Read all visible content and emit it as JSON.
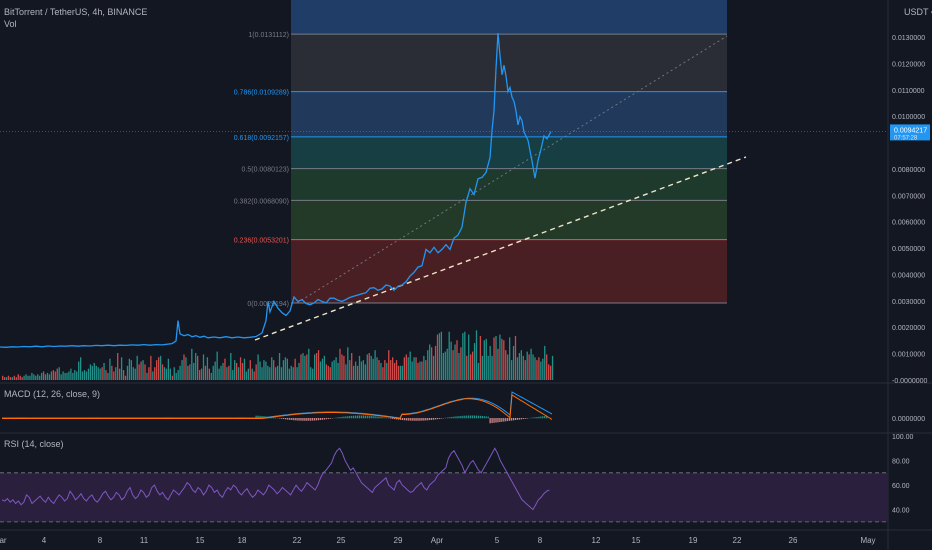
{
  "header": {
    "symbol": "BitTorrent / TetherUS, 4h, BINANCE",
    "vol_label": "Vol",
    "currency": "USDT",
    "currency_icon": "chevron-down-icon"
  },
  "colors": {
    "background": "#131722",
    "price_line": "#2196f3",
    "bull": "#26a69a",
    "bear": "#ef5350",
    "macd": "#2196f3",
    "signal": "#ff6d00",
    "rsi": "#7e57c2",
    "rsi_band": "#2a1f3d",
    "fib_line": "#787b86",
    "trend_dashed": "#f0e6c8"
  },
  "chart_data": [
    {
      "type": "line",
      "name": "price",
      "title": "BitTorrent / TetherUS, 4h, BINANCE",
      "x_ticks": [
        "ar",
        "4",
        "8",
        "11",
        "15",
        "18",
        "22",
        "25",
        "29",
        "Apr",
        "5",
        "8",
        "12",
        "15",
        "19",
        "22",
        "26",
        "May"
      ],
      "y_ticks": [
        "0.0130000",
        "0.0120000",
        "0.0110000",
        "0.0100000",
        "0.0080000",
        "0.0070000",
        "0.0060000",
        "0.0050000",
        "0.0040000",
        "0.0030000",
        "0.0020000",
        "0.0010000",
        "-0.0000000"
      ],
      "ylim": [
        -0.0001,
        0.0145
      ],
      "current_price_label": "0.0094217",
      "current_price_sub": "07:57:28",
      "series": [
        {
          "values": [
            [
              0,
              0.00125
            ],
            [
              6,
              0.00124
            ],
            [
              12,
              0.00126
            ],
            [
              18,
              0.00125
            ],
            [
              24,
              0.00127
            ],
            [
              30,
              0.00126
            ],
            [
              36,
              0.00128
            ],
            [
              42,
              0.00126
            ],
            [
              48,
              0.00129
            ],
            [
              54,
              0.00127
            ],
            [
              60,
              0.00129
            ],
            [
              66,
              0.00128
            ],
            [
              72,
              0.0013
            ],
            [
              78,
              0.00128
            ],
            [
              84,
              0.0013
            ],
            [
              90,
              0.00129
            ],
            [
              96,
              0.00131
            ],
            [
              102,
              0.0013
            ],
            [
              108,
              0.00132
            ],
            [
              114,
              0.0013
            ],
            [
              120,
              0.00132
            ],
            [
              126,
              0.00131
            ],
            [
              132,
              0.00133
            ],
            [
              138,
              0.00132
            ],
            [
              144,
              0.00134
            ],
            [
              150,
              0.00132
            ],
            [
              156,
              0.00134
            ],
            [
              162,
              0.00133
            ],
            [
              168,
              0.00136
            ],
            [
              172,
              0.00138
            ],
            [
              176,
              0.00148
            ],
            [
              178,
              0.00225
            ],
            [
              180,
              0.00175
            ],
            [
              184,
              0.00168
            ],
            [
              188,
              0.00172
            ],
            [
              192,
              0.00164
            ],
            [
              196,
              0.00168
            ],
            [
              200,
              0.00162
            ],
            [
              204,
              0.00166
            ],
            [
              208,
              0.0016
            ],
            [
              214,
              0.00163
            ],
            [
              220,
              0.0016
            ],
            [
              226,
              0.00164
            ],
            [
              232,
              0.0016
            ],
            [
              238,
              0.00163
            ],
            [
              244,
              0.0016
            ],
            [
              250,
              0.00162
            ],
            [
              256,
              0.00165
            ],
            [
              262,
              0.00178
            ],
            [
              266,
              0.00225
            ],
            [
              268,
              0.00298
            ],
            [
              270,
              0.00258
            ],
            [
              274,
              0.00298
            ],
            [
              278,
              0.00272
            ],
            [
              282,
              0.00255
            ],
            [
              286,
              0.00245
            ],
            [
              290,
              0.00262
            ],
            [
              294,
              0.00315
            ],
            [
              298,
              0.00298
            ],
            [
              302,
              0.00305
            ],
            [
              306,
              0.0029
            ],
            [
              310,
              0.00285
            ],
            [
              314,
              0.00292
            ],
            [
              318,
              0.00305
            ],
            [
              322,
              0.00298
            ],
            [
              326,
              0.00292
            ],
            [
              330,
              0.0031
            ],
            [
              334,
              0.0031
            ],
            [
              338,
              0.00302
            ],
            [
              342,
              0.00298
            ],
            [
              346,
              0.00305
            ],
            [
              350,
              0.00313
            ],
            [
              354,
              0.00318
            ],
            [
              358,
              0.00322
            ],
            [
              362,
              0.00327
            ],
            [
              366,
              0.00331
            ],
            [
              370,
              0.00348
            ],
            [
              374,
              0.0035
            ],
            [
              378,
              0.0034
            ],
            [
              382,
              0.00345
            ],
            [
              386,
              0.0036
            ],
            [
              390,
              0.00356
            ],
            [
              394,
              0.0034
            ],
            [
              398,
              0.00355
            ],
            [
              402,
              0.0036
            ],
            [
              406,
              0.00372
            ],
            [
              410,
              0.00394
            ],
            [
              414,
              0.00408
            ],
            [
              418,
              0.00428
            ],
            [
              422,
              0.00433
            ],
            [
              426,
              0.00495
            ],
            [
              430,
              0.00482
            ],
            [
              434,
              0.00503
            ],
            [
              438,
              0.00482
            ],
            [
              442,
              0.00495
            ],
            [
              446,
              0.00513
            ],
            [
              450,
              0.00495
            ],
            [
              454,
              0.00538
            ],
            [
              458,
              0.00549
            ],
            [
              462,
              0.00579
            ],
            [
              466,
              0.00673
            ],
            [
              470,
              0.00725
            ],
            [
              474,
              0.00703
            ],
            [
              478,
              0.00763
            ],
            [
              482,
              0.00768
            ],
            [
              486,
              0.00787
            ],
            [
              490,
              0.00843
            ],
            [
              492,
              0.00945
            ],
            [
              494,
              0.0102
            ],
            [
              496,
              0.0118
            ],
            [
              498,
              0.01315
            ],
            [
              500,
              0.0123
            ],
            [
              502,
              0.01157
            ],
            [
              504,
              0.01193
            ],
            [
              506,
              0.01152
            ],
            [
              508,
              0.01093
            ],
            [
              510,
              0.01109
            ],
            [
              512,
              0.01072
            ],
            [
              514,
              0.01056
            ],
            [
              516,
              0.01019
            ],
            [
              518,
              0.00967
            ],
            [
              520,
              0.00998
            ],
            [
              522,
              0.00983
            ],
            [
              524,
              0.0094
            ],
            [
              528,
              0.00908
            ],
            [
              532,
              0.0083
            ],
            [
              535,
              0.00765
            ],
            [
              538,
              0.00832
            ],
            [
              541,
              0.00875
            ],
            [
              544,
              0.00925
            ],
            [
              547,
              0.00914
            ],
            [
              551,
              0.00942
            ]
          ]
        }
      ],
      "fib_levels": [
        {
          "ratio": "1",
          "price": "0.0131112",
          "value": 0.0131112,
          "color": "#787b86"
        },
        {
          "ratio": "0.786",
          "price": "0.0109289",
          "value": 0.0109289,
          "color": "#2196f3"
        },
        {
          "ratio": "0.618",
          "price": "0.0092157",
          "value": 0.0092157,
          "color": "#2196f3"
        },
        {
          "ratio": "0.5",
          "price": "0.0080123",
          "value": 0.0080123,
          "color": "#787b86"
        },
        {
          "ratio": "0.382",
          "price": "0.0068090",
          "value": 0.006809,
          "color": "#787b86"
        },
        {
          "ratio": "0.236",
          "price": "0.0053201",
          "value": 0.0053201,
          "color": "#ef5350"
        },
        {
          "ratio": "0",
          "price": "0.0029194",
          "value": 0.0029194,
          "color": "#787b86"
        }
      ]
    },
    {
      "type": "bar",
      "name": "volume",
      "values": [
        3,
        2,
        2,
        3,
        2,
        2,
        3,
        2,
        4,
        3,
        2,
        3,
        4,
        3,
        3,
        5,
        4,
        3,
        4,
        3,
        5,
        6,
        4,
        5,
        4,
        6,
        7,
        6,
        8,
        9,
        4,
        6,
        5,
        5,
        6,
        8,
        5,
        7,
        6,
        13,
        16,
        6,
        7,
        6,
        8,
        11,
        10,
        12,
        10,
        9,
        8,
        9,
        12,
        7,
        5,
        15,
        10,
        6,
        9,
        19,
        8,
        16,
        7,
        3,
        10,
        15,
        14,
        9,
        8,
        17,
        11,
        13,
        14,
        11,
        5,
        9,
        17,
        6,
        9,
        14,
        16,
        17,
        11,
        9,
        8,
        15,
        8,
        3,
        9,
        5,
        7,
        10,
        14,
        18,
        16,
        10,
        11,
        22,
        12,
        19,
        17,
        7,
        8,
        18,
        10,
        16,
        8,
        5,
        10,
        13,
        20,
        8,
        10,
        12,
        15,
        9,
        10,
        19,
        7,
        14,
        12,
        9,
        16,
        12,
        15,
        6,
        8,
        14,
        8,
        6,
        11,
        18,
        13,
        9,
        14,
        13,
        10,
        9,
        16,
        14,
        9,
        10,
        19,
        9,
        14,
        16,
        15,
        8,
        10,
        9,
        15,
        9,
        12,
        18,
        19,
        17,
        18,
        22,
        9,
        8,
        18,
        19,
        21,
        13,
        15,
        17,
        11,
        10,
        9,
        13,
        14,
        16,
        12,
        22,
        18,
        17,
        11,
        23,
        14,
        19,
        10,
        13,
        10,
        17,
        13,
        14,
        11,
        18,
        19,
        17,
        15,
        21,
        16,
        14,
        12,
        9,
        14,
        12,
        21,
        14,
        16,
        12,
        14,
        10,
        10,
        10,
        16,
        18,
        16,
        20,
        13,
        16,
        16,
        12,
        13,
        13,
        17,
        14,
        21,
        25,
        23,
        17,
        24,
        32,
        33,
        34,
        19,
        20,
        22,
        34,
        27,
        21,
        25,
        28,
        19,
        23,
        33,
        34,
        17,
        32,
        18,
        20,
        26,
        35,
        12,
        31,
        17,
        28,
        29,
        17,
        24,
        17,
        30,
        31,
        22,
        32,
        29,
        28,
        21,
        18,
        30,
        14,
        24,
        31,
        16,
        19,
        21,
        17,
        14,
        20,
        18,
        22,
        18,
        16,
        14,
        16,
        13,
        15,
        24,
        18,
        11,
        10,
        17,
        12,
        13,
        20,
        12,
        11,
        18,
        15
      ],
      "bull_pattern": "mixed"
    },
    {
      "type": "line",
      "name": "MACD",
      "title": "MACD (12, 26, close, 9)",
      "y_ticks": [
        "0.0000000"
      ],
      "series": [
        {
          "name": "MACD",
          "color": "#2196f3"
        },
        {
          "name": "Signal",
          "color": "#ff6d00"
        }
      ]
    },
    {
      "type": "line",
      "name": "RSI",
      "title": "RSI (14, close)",
      "y_ticks": [
        "100.00",
        "80.00",
        "60.00",
        "40.00"
      ],
      "ylim": [
        25,
        100
      ],
      "bands": [
        70,
        30
      ],
      "values": [
        48,
        47,
        49,
        46,
        48,
        45,
        47,
        44,
        46,
        52,
        50,
        45,
        47,
        49,
        51,
        48,
        46,
        50,
        47,
        45,
        49,
        52,
        50,
        47,
        49,
        55,
        52,
        48,
        50,
        53,
        49,
        47,
        50,
        52,
        48,
        46,
        49,
        53,
        55,
        51,
        48,
        50,
        54,
        52,
        48,
        50,
        55,
        58,
        52,
        49,
        51,
        56,
        54,
        50,
        52,
        58,
        60,
        55,
        52,
        54,
        50,
        48,
        52,
        56,
        54,
        52,
        55,
        58,
        62,
        60,
        56,
        54,
        58,
        56,
        52,
        55,
        60,
        58,
        54,
        56,
        52,
        50,
        55,
        58,
        56,
        60,
        58,
        54,
        52,
        55,
        57,
        53,
        50,
        52,
        56,
        54,
        52,
        55,
        60,
        58,
        56,
        53,
        55,
        58,
        56,
        54,
        52,
        56,
        60,
        57,
        55,
        58,
        62,
        60,
        58,
        56,
        60,
        66,
        70,
        72,
        75,
        78,
        84,
        88,
        90,
        86,
        80,
        76,
        72,
        74,
        70,
        66,
        62,
        60,
        58,
        56,
        54,
        58,
        60,
        62,
        64,
        66,
        60,
        58,
        56,
        62,
        64,
        60,
        58,
        56,
        54,
        55,
        58,
        60,
        62,
        58,
        56,
        60,
        62,
        64,
        68,
        70,
        72,
        74,
        82,
        86,
        88,
        84,
        80,
        76,
        70,
        74,
        78,
        80,
        76,
        72,
        70,
        74,
        78,
        82,
        86,
        90,
        86,
        80,
        76,
        72,
        68,
        64,
        60,
        56,
        52,
        48,
        46,
        44,
        42,
        40,
        44,
        48,
        50,
        53,
        55,
        56
      ]
    }
  ]
}
